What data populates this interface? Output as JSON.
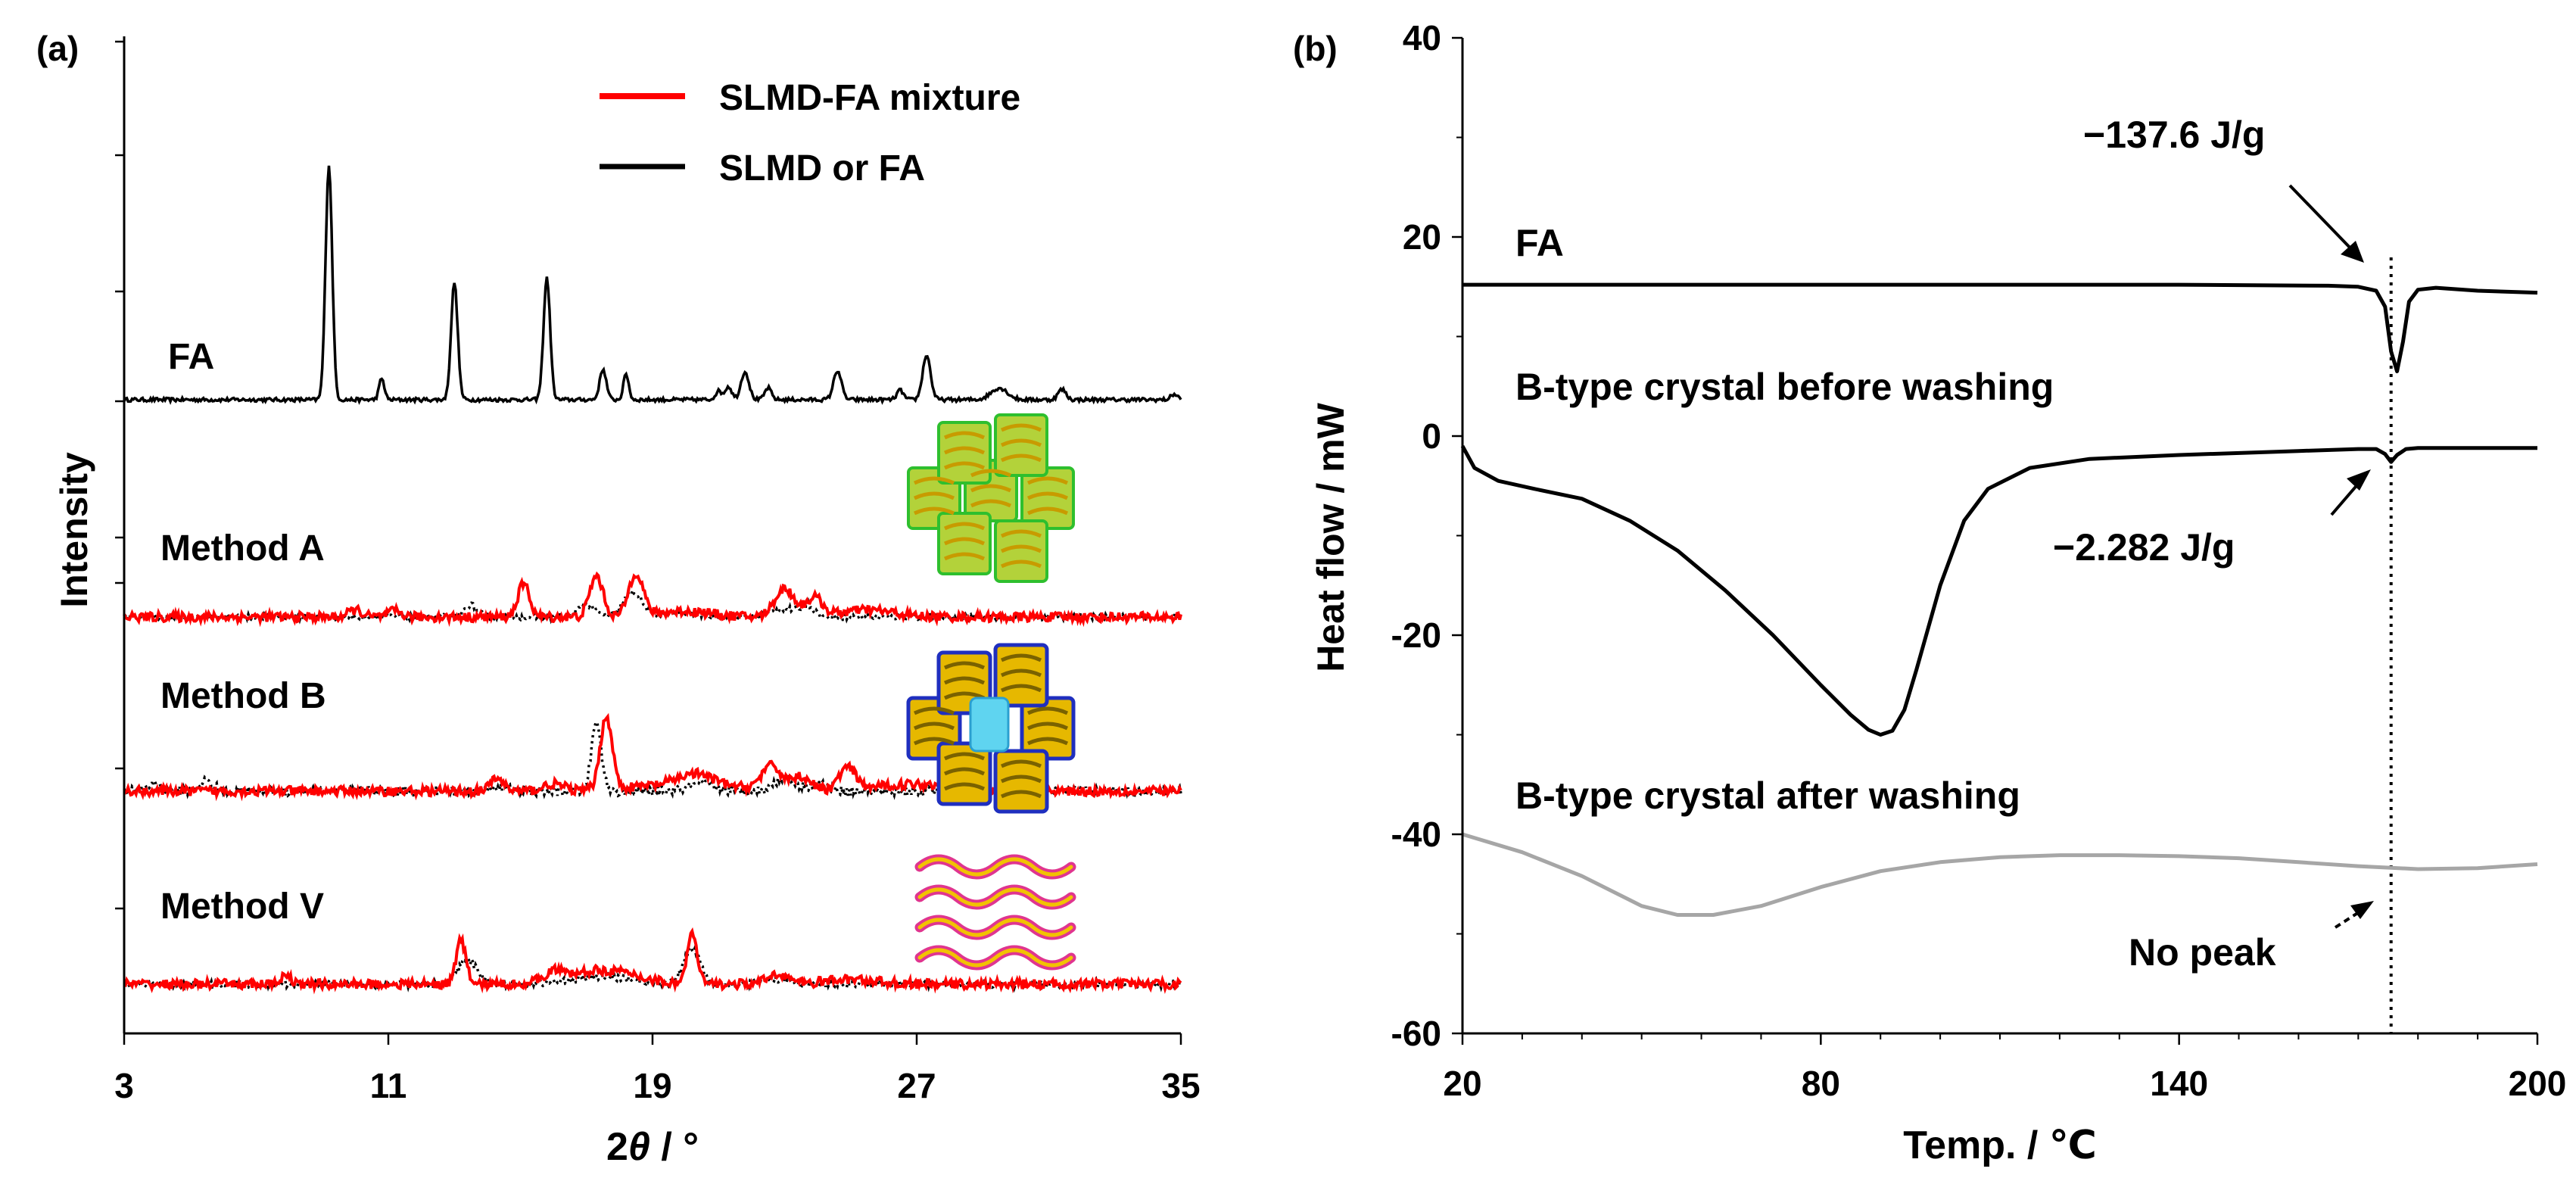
{
  "chart_data": [
    {
      "panel_label": "(a)",
      "type": "line",
      "title": "",
      "xlabel_prefix": "2",
      "xlabel_symbol": "θ",
      "xlabel_suffix": " / °",
      "ylabel": "Intensity",
      "xlim": [
        3,
        35
      ],
      "xticks": [
        3,
        11,
        19,
        27,
        35
      ],
      "legend": [
        {
          "label": "SLMD-FA mixture",
          "color": "#ff0000"
        },
        {
          "label": "SLMD or FA",
          "color": "#000000"
        }
      ],
      "traces": [
        {
          "label": "FA",
          "style": "solid",
          "color": "#000000",
          "baseline": 1.0,
          "scale": 1.0,
          "noise": 0.004,
          "peaks": [
            [
              9.2,
              5.0,
              0.1
            ],
            [
              10.8,
              0.45,
              0.08
            ],
            [
              13.0,
              2.5,
              0.1
            ],
            [
              15.8,
              2.6,
              0.1
            ],
            [
              17.5,
              0.65,
              0.1
            ],
            [
              18.2,
              0.55,
              0.08
            ],
            [
              21.0,
              0.18,
              0.1
            ],
            [
              21.3,
              0.28,
              0.1
            ],
            [
              21.8,
              0.6,
              0.12
            ],
            [
              22.5,
              0.25,
              0.1
            ],
            [
              24.6,
              0.62,
              0.12
            ],
            [
              26.5,
              0.2,
              0.1
            ],
            [
              27.3,
              0.95,
              0.12
            ],
            [
              29.5,
              0.25,
              0.25
            ],
            [
              31.4,
              0.22,
              0.12
            ],
            [
              34.8,
              0.12,
              0.1
            ]
          ]
        },
        {
          "label": "Method A",
          "style": "dotted",
          "color": "#000000",
          "baseline": 0.5,
          "scale": 0.5,
          "noise": 0.012,
          "peaks": [
            [
              17.0,
              0.55,
              0.25
            ],
            [
              18.4,
              1.05,
              0.28
            ],
            [
              13.5,
              0.5,
              0.2
            ],
            [
              23.0,
              0.35,
              0.4
            ],
            [
              23.7,
              0.45,
              0.2
            ],
            [
              20.0,
              0.15,
              0.6
            ]
          ]
        },
        {
          "label": "Method A",
          "style": "solid",
          "color": "#ff0000",
          "baseline": 0.55,
          "scale": 0.5,
          "noise": 0.02,
          "peaks": [
            [
              15.1,
              1.4,
              0.18
            ],
            [
              17.3,
              1.75,
              0.2
            ],
            [
              18.5,
              1.85,
              0.22
            ],
            [
              23.0,
              1.2,
              0.3
            ],
            [
              23.9,
              0.8,
              0.25
            ],
            [
              10.0,
              0.3,
              0.2
            ],
            [
              11.2,
              0.25,
              0.2
            ],
            [
              20.0,
              0.25,
              0.8
            ],
            [
              25.5,
              0.3,
              0.8
            ]
          ]
        },
        {
          "label": "Method B",
          "style": "dotted",
          "color": "#000000",
          "baseline": 0.5,
          "scale": 0.5,
          "noise": 0.02,
          "peaks": [
            [
              5.5,
              0.45,
              0.2
            ],
            [
              3.8,
              0.3,
              0.2
            ],
            [
              17.3,
              2.9,
              0.15
            ],
            [
              20.5,
              0.3,
              0.4
            ],
            [
              23.0,
              0.6,
              0.3
            ],
            [
              24.0,
              0.3,
              0.3
            ],
            [
              14.3,
              0.2,
              0.3
            ]
          ]
        },
        {
          "label": "Method B",
          "style": "solid",
          "color": "#ff0000",
          "baseline": 0.55,
          "scale": 0.5,
          "noise": 0.02,
          "peaks": [
            [
              14.3,
              0.55,
              0.2
            ],
            [
              17.6,
              3.1,
              0.18
            ],
            [
              16.0,
              0.3,
              0.3
            ],
            [
              20.3,
              0.45,
              0.5
            ],
            [
              22.6,
              1.0,
              0.3
            ],
            [
              23.5,
              0.6,
              0.3
            ],
            [
              24.9,
              0.95,
              0.25
            ],
            [
              20.0,
              0.3,
              1.5
            ],
            [
              27.0,
              0.3,
              1.2
            ]
          ]
        },
        {
          "label": "Method V",
          "style": "dotted",
          "color": "#000000",
          "baseline": 0.5,
          "scale": 0.5,
          "noise": 0.015,
          "peaks": [
            [
              13.4,
              1.0,
              0.3
            ],
            [
              20.2,
              1.5,
              0.25
            ],
            [
              17.5,
              0.3,
              1.0
            ],
            [
              22.8,
              0.2,
              0.5
            ]
          ]
        },
        {
          "label": "Method V",
          "style": "solid",
          "color": "#ff0000",
          "baseline": 0.55,
          "scale": 0.5,
          "noise": 0.02,
          "peaks": [
            [
              7.9,
              0.5,
              0.12
            ],
            [
              13.2,
              1.85,
              0.15
            ],
            [
              20.2,
              2.1,
              0.15
            ],
            [
              16.0,
              0.4,
              0.3
            ],
            [
              17.5,
              0.6,
              1.0
            ],
            [
              22.8,
              0.45,
              0.3
            ],
            [
              25.0,
              0.2,
              0.8
            ]
          ]
        }
      ]
    },
    {
      "panel_label": "(b)",
      "type": "line",
      "title": "",
      "xlabel": "Temp. / ℃",
      "ylabel": "Heat flow / mW",
      "xlim": [
        20,
        200
      ],
      "ylim": [
        -60,
        40
      ],
      "xticks": [
        20,
        80,
        140,
        200
      ],
      "yticks": [
        -60,
        -40,
        -20,
        0,
        20,
        40
      ],
      "reference_line_x": 175.5,
      "series": [
        {
          "name": "FA",
          "color": "#000000",
          "x": [
            20,
            60,
            100,
            140,
            165,
            170,
            173,
            174.5,
            175.5,
            176.5,
            177.5,
            178.5,
            180,
            183,
            190,
            200
          ],
          "y": [
            15.2,
            15.2,
            15.2,
            15.2,
            15.1,
            15.0,
            14.6,
            13.0,
            8.5,
            6.5,
            9.5,
            13.5,
            14.7,
            14.9,
            14.6,
            14.4
          ]
        },
        {
          "name": "B-type crystal before washing",
          "color": "#000000",
          "x": [
            20,
            22,
            26,
            32,
            40,
            48,
            56,
            64,
            72,
            80,
            85,
            88,
            90,
            92,
            94,
            96,
            100,
            104,
            108,
            115,
            125,
            140,
            160,
            170,
            173,
            174.5,
            175.5,
            176.5,
            178,
            180,
            190,
            200
          ],
          "y": [
            -1.0,
            -3.2,
            -4.5,
            -5.3,
            -6.3,
            -8.5,
            -11.5,
            -15.5,
            -20.0,
            -25.0,
            -28.0,
            -29.5,
            -30.0,
            -29.6,
            -27.5,
            -23.5,
            -15.0,
            -8.5,
            -5.3,
            -3.2,
            -2.3,
            -1.9,
            -1.5,
            -1.3,
            -1.3,
            -1.8,
            -2.6,
            -1.9,
            -1.3,
            -1.2,
            -1.2,
            -1.2
          ]
        },
        {
          "name": "B-type crystal after washing",
          "color": "#a6a6a6",
          "x": [
            20,
            30,
            40,
            50,
            56,
            62,
            70,
            80,
            90,
            100,
            110,
            120,
            130,
            140,
            150,
            160,
            170,
            180,
            190,
            200
          ],
          "y": [
            -40.0,
            -41.8,
            -44.2,
            -47.2,
            -48.1,
            -48.1,
            -47.2,
            -45.3,
            -43.7,
            -42.8,
            -42.3,
            -42.1,
            -42.1,
            -42.2,
            -42.4,
            -42.8,
            -43.2,
            -43.5,
            -43.4,
            -43.0
          ]
        }
      ],
      "labels": {
        "fa": "FA",
        "before": "B-type crystal before washing",
        "after": "B-type crystal after washing"
      },
      "annotations": [
        {
          "text": "−137.6 J/g",
          "x": 175.5,
          "y": 15.0
        },
        {
          "text": "−2.282 J/g",
          "x": 175.5,
          "y": -2.3
        },
        {
          "text": "No peak",
          "x": 175.5,
          "y": -43.5
        }
      ]
    }
  ]
}
